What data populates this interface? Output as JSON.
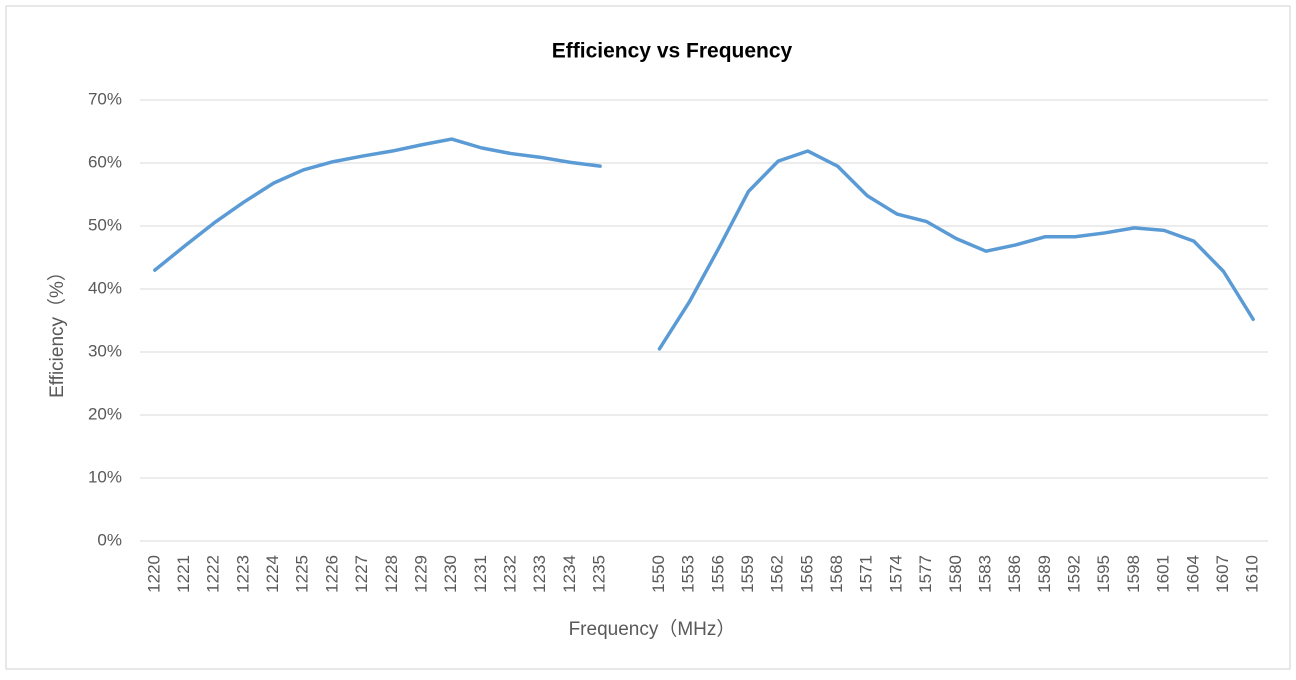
{
  "chart_data": {
    "type": "line",
    "title": "Efficiency vs Frequency",
    "x_label": "Frequency（MHz）",
    "y_label": "Efficiency（%）",
    "categories": [
      "1220",
      "1221",
      "1222",
      "1223",
      "1224",
      "1225",
      "1226",
      "1227",
      "1228",
      "1229",
      "1230",
      "1231",
      "1232",
      "1233",
      "1234",
      "1235",
      null,
      "1550",
      "1553",
      "1556",
      "1559",
      "1562",
      "1565",
      "1568",
      "1571",
      "1574",
      "1577",
      "1580",
      "1583",
      "1586",
      "1589",
      "1592",
      "1595",
      "1598",
      "1601",
      "1604",
      "1607",
      "1610"
    ],
    "series": [
      {
        "name": "Efficiency",
        "color": "#5b9bd5",
        "values": [
          43.0,
          46.8,
          50.5,
          53.8,
          56.8,
          58.9,
          60.2,
          61.1,
          61.9,
          62.9,
          63.8,
          62.4,
          61.5,
          60.9,
          60.1,
          59.5,
          null,
          30.5,
          37.9,
          46.5,
          55.5,
          60.3,
          61.9,
          59.5,
          54.8,
          51.9,
          50.7,
          48.0,
          46.0,
          47.0,
          48.3,
          48.3,
          48.9,
          49.7,
          49.3,
          47.6,
          42.8,
          35.2
        ]
      }
    ],
    "ylim": [
      0,
      70
    ],
    "yticks": [
      {
        "value": 0,
        "label": "0%"
      },
      {
        "value": 10,
        "label": "10%"
      },
      {
        "value": 20,
        "label": "20%"
      },
      {
        "value": 30,
        "label": "30%"
      },
      {
        "value": 40,
        "label": "40%"
      },
      {
        "value": 50,
        "label": "50%"
      },
      {
        "value": 60,
        "label": "60%"
      },
      {
        "value": 70,
        "label": "70%"
      }
    ],
    "grid": true
  }
}
